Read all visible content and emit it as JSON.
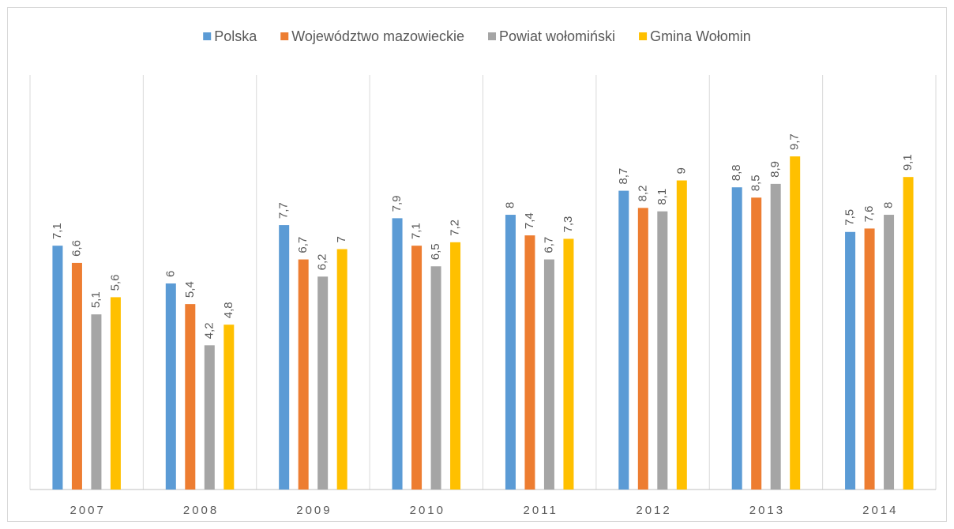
{
  "chart_data": {
    "type": "bar",
    "categories": [
      "2007",
      "2008",
      "2009",
      "2010",
      "2011",
      "2012",
      "2013",
      "2014"
    ],
    "series": [
      {
        "name": "Polska",
        "color": "#5b9bd5",
        "values": [
          7.1,
          6,
          7.7,
          7.9,
          8,
          8.7,
          8.8,
          7.5
        ],
        "value_labels": [
          "7,1",
          "6",
          "7,7",
          "7,9",
          "8",
          "8,7",
          "8,8",
          "7,5"
        ]
      },
      {
        "name": "Województwo mazowieckie",
        "color": "#ed7d31",
        "values": [
          6.6,
          5.4,
          6.7,
          7.1,
          7.4,
          8.2,
          8.5,
          7.6
        ],
        "value_labels": [
          "6,6",
          "5,4",
          "6,7",
          "7,1",
          "7,4",
          "8,2",
          "8,5",
          "7,6"
        ]
      },
      {
        "name": "Powiat wołomiński",
        "color": "#a5a5a5",
        "values": [
          5.1,
          4.2,
          6.2,
          6.5,
          6.7,
          8.1,
          8.9,
          8
        ],
        "value_labels": [
          "5,1",
          "4,2",
          "6,2",
          "6,5",
          "6,7",
          "8,1",
          "8,9",
          "8"
        ]
      },
      {
        "name": "Gmina Wołomin",
        "color": "#ffc000",
        "values": [
          5.6,
          4.8,
          7,
          7.2,
          7.3,
          9,
          9.7,
          9.1
        ],
        "value_labels": [
          "5,6",
          "4,8",
          "7",
          "7,2",
          "7,3",
          "9",
          "9,7",
          "9,1"
        ]
      }
    ],
    "ylim": [
      0,
      12.07
    ],
    "legend": "top"
  }
}
